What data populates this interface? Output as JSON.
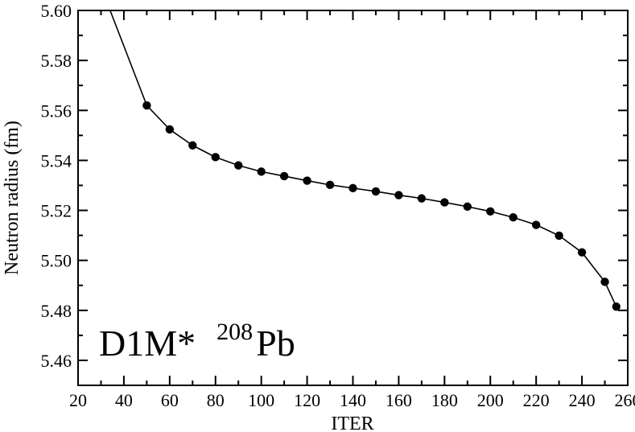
{
  "chart_data": {
    "type": "line",
    "xlabel": "ITER",
    "ylabel": "Neutron radius (fm)",
    "xlim": [
      20,
      260
    ],
    "ylim": [
      5.45,
      5.6
    ],
    "x_major_ticks": [
      20,
      40,
      60,
      80,
      100,
      120,
      140,
      160,
      180,
      200,
      220,
      240,
      260
    ],
    "y_major_ticks": [
      5.46,
      5.48,
      5.5,
      5.52,
      5.54,
      5.56,
      5.58,
      5.6
    ],
    "x_tick_labels": [
      "20",
      "40",
      "60",
      "80",
      "100",
      "120",
      "140",
      "160",
      "180",
      "200",
      "220",
      "240",
      "260"
    ],
    "y_tick_labels": [
      "5.46",
      "5.48",
      "5.50",
      "5.52",
      "5.54",
      "5.56",
      "5.58",
      "5.60"
    ],
    "grid": false,
    "annotation": {
      "label": "D1M*",
      "mass_number": "208",
      "element": "Pb"
    },
    "series": [
      {
        "x": [
          34,
          50
        ],
        "y": [
          5.6,
          5.562
        ],
        "markers": false
      },
      {
        "x": [
          50,
          60,
          70,
          80,
          90,
          100,
          110,
          120,
          130,
          140,
          150,
          160,
          170,
          180,
          190,
          200,
          210,
          220,
          230,
          240,
          250,
          255
        ],
        "y": [
          5.562,
          5.5524,
          5.546,
          5.5413,
          5.538,
          5.5355,
          5.5337,
          5.5319,
          5.5302,
          5.5289,
          5.5276,
          5.5261,
          5.5248,
          5.5232,
          5.5215,
          5.5196,
          5.5172,
          5.5142,
          5.5099,
          5.5032,
          5.4914,
          5.4815
        ],
        "markers": true
      }
    ]
  }
}
